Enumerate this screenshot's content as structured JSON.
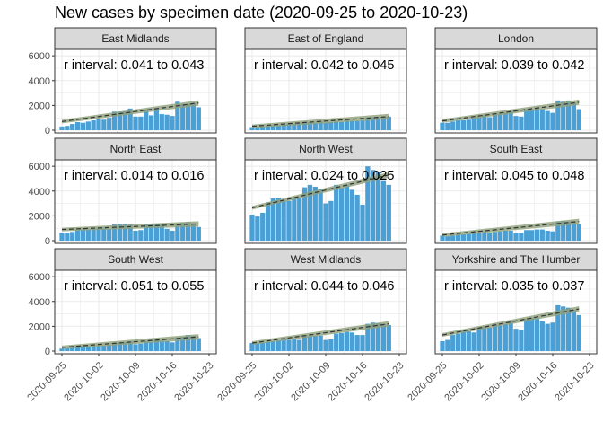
{
  "chart_data": {
    "type": "bar",
    "title": "New cases by specimen date (2020-09-25 to 2020-10-23)",
    "xlabel": "",
    "ylabel": "",
    "x_start": "2020-09-25",
    "x_end": "2020-10-23",
    "x_ticks": [
      "2020-09-25",
      "2020-10-02",
      "2020-10-09",
      "2020-10-16",
      "2020-10-23"
    ],
    "y_ticks": [
      0,
      2000,
      4000,
      6000
    ],
    "ylim": [
      0,
      6300
    ],
    "grid": true,
    "legend": "none",
    "colors": {
      "bar": "#4a9fd4",
      "trend_fill": "#8fa07a",
      "trend_line": "#333333",
      "strip": "#d9d9d9",
      "grid": "#ebebeb"
    },
    "panels": [
      {
        "region": "East Midlands",
        "annotation": "r interval: 0.041 to 0.043",
        "values": [
          300,
          350,
          500,
          650,
          600,
          700,
          800,
          900,
          850,
          1000,
          1500,
          1500,
          1550,
          1750,
          1100,
          1100,
          1650,
          1200,
          1800,
          1300,
          1250,
          1150,
          2300,
          2100,
          2100,
          2200,
          1850
        ],
        "trend": [
          700,
          2200
        ]
      },
      {
        "region": "East of England",
        "annotation": "r interval: 0.042 to 0.045",
        "values": [
          250,
          250,
          300,
          350,
          400,
          400,
          450,
          500,
          500,
          600,
          650,
          650,
          600,
          700,
          600,
          650,
          700,
          650,
          800,
          750,
          750,
          800,
          1000,
          1050,
          1000,
          1050,
          1100
        ],
        "trend": [
          320,
          1100
        ]
      },
      {
        "region": "London",
        "annotation": "r interval: 0.039 to 0.042",
        "values": [
          600,
          600,
          700,
          800,
          800,
          850,
          1000,
          1050,
          1200,
          1050,
          1350,
          1300,
          1400,
          1550,
          1150,
          1100,
          1700,
          1650,
          1750,
          1700,
          1550,
          1400,
          2400,
          2300,
          2400,
          2200,
          1700
        ],
        "trend": [
          750,
          2250
        ]
      },
      {
        "region": "North East",
        "annotation": "r interval: 0.014 to 0.016",
        "values": [
          650,
          650,
          700,
          850,
          900,
          900,
          950,
          1000,
          1000,
          950,
          1300,
          1350,
          1350,
          1300,
          800,
          850,
          1350,
          1300,
          1350,
          1300,
          950,
          800,
          1350,
          1450,
          1500,
          1400,
          1100
        ],
        "trend": [
          900,
          1350
        ]
      },
      {
        "region": "North West",
        "annotation": "r interval: 0.024 to 0.025",
        "values": [
          2100,
          1950,
          2250,
          3100,
          3400,
          3450,
          3250,
          3200,
          3500,
          3500,
          4300,
          4500,
          4350,
          4200,
          3000,
          3200,
          4500,
          4250,
          4500,
          4100,
          3700,
          2900,
          6000,
          5700,
          5500,
          4800,
          4500
        ],
        "trend": [
          2650,
          5300
        ]
      },
      {
        "region": "South East",
        "annotation": "r interval: 0.045 to 0.048",
        "values": [
          400,
          350,
          400,
          500,
          500,
          550,
          600,
          600,
          700,
          650,
          700,
          750,
          800,
          800,
          600,
          650,
          850,
          850,
          900,
          900,
          800,
          750,
          1550,
          1600,
          1550,
          1550,
          1350
        ],
        "trend": [
          450,
          1550
        ]
      },
      {
        "region": "South West",
        "annotation": "r interval: 0.051 to 0.055",
        "values": [
          200,
          250,
          300,
          350,
          400,
          400,
          400,
          450,
          450,
          500,
          650,
          650,
          700,
          800,
          550,
          600,
          800,
          750,
          900,
          850,
          800,
          700,
          1100,
          1150,
          1300,
          1250,
          1050
        ],
        "trend": [
          300,
          1150
        ]
      },
      {
        "region": "West Midlands",
        "annotation": "r interval: 0.044 to 0.046",
        "values": [
          650,
          650,
          700,
          750,
          800,
          850,
          950,
          900,
          950,
          900,
          1200,
          1200,
          1250,
          1250,
          900,
          950,
          1400,
          1450,
          1550,
          1500,
          1300,
          1300,
          2200,
          2300,
          2250,
          2200,
          2100
        ],
        "trend": [
          650,
          2200
        ]
      },
      {
        "region": "Yorkshire and The Humber",
        "annotation": "r interval: 0.035 to 0.037",
        "values": [
          800,
          900,
          1300,
          1400,
          1700,
          1600,
          1500,
          1900,
          2000,
          1900,
          2200,
          2100,
          2200,
          2400,
          1800,
          1700,
          2600,
          2700,
          2650,
          2400,
          2200,
          2300,
          3700,
          3600,
          3500,
          3300,
          2900
        ],
        "trend": [
          1300,
          3400
        ]
      }
    ]
  }
}
